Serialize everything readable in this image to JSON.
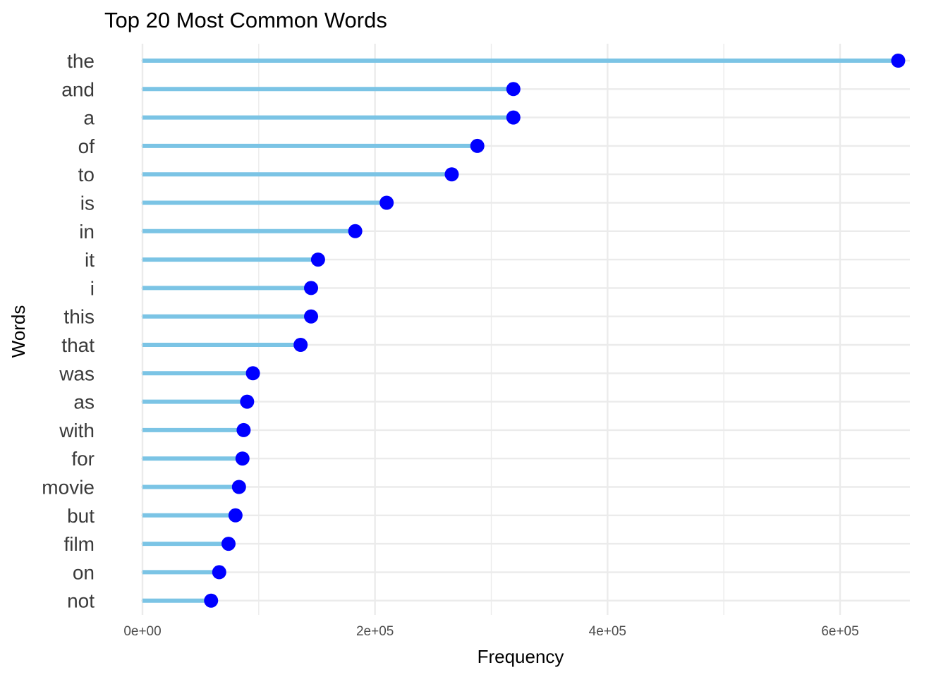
{
  "chart_data": {
    "type": "lollipop",
    "title": "Top 20 Most Common Words",
    "xlabel": "Frequency",
    "ylabel": "Words",
    "xlim": [
      0,
      650000
    ],
    "x_ticks": [
      0,
      200000,
      400000,
      600000
    ],
    "x_tick_labels": [
      "0e+00",
      "2e+05",
      "4e+05",
      "6e+05"
    ],
    "x_minor_gridlines": [
      100000,
      300000,
      500000
    ],
    "grid": true,
    "orientation": "horizontal",
    "categories": [
      "the",
      "and",
      "a",
      "of",
      "to",
      "is",
      "in",
      "it",
      "i",
      "this",
      "that",
      "was",
      "as",
      "with",
      "for",
      "movie",
      "but",
      "film",
      "on",
      "not"
    ],
    "values": [
      650000,
      319000,
      319000,
      288000,
      266000,
      210000,
      183000,
      151000,
      145000,
      145000,
      136000,
      95000,
      90000,
      87000,
      86000,
      83000,
      80000,
      74000,
      66000,
      59000
    ],
    "colors": {
      "stem": "#7bc4e5",
      "point": "#0000ff",
      "grid": "#ebebeb"
    }
  }
}
